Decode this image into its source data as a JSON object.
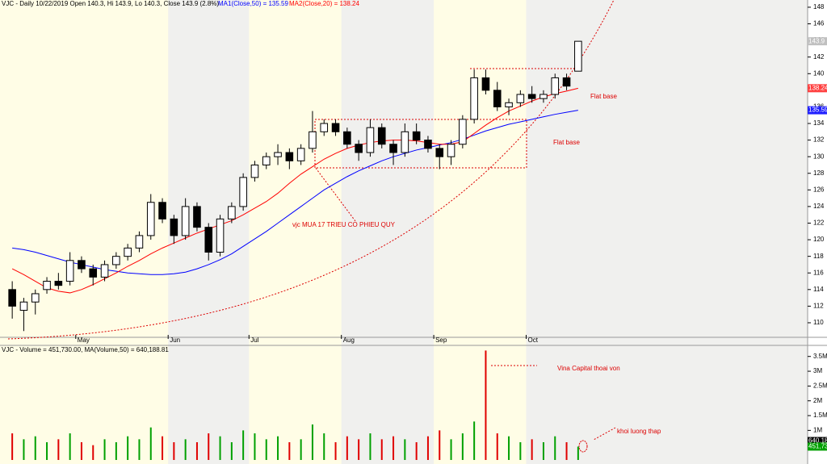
{
  "chart_data": [
    {
      "type": "candlestick",
      "title": "VJC - Daily 10/22/2019 Open 140.3, Hi 143.9, Lo 140.3, Close 143.9 (2.8%)",
      "categories": [
        null,
        null,
        null,
        null,
        null,
        null,
        "May",
        null,
        null,
        null,
        null,
        null,
        null,
        null,
        "Jun",
        null,
        null,
        null,
        null,
        null,
        null,
        "Jul",
        null,
        null,
        null,
        null,
        null,
        null,
        null,
        "Aug",
        null,
        null,
        null,
        null,
        null,
        null,
        null,
        "Sep",
        null,
        null,
        null,
        null,
        null,
        null,
        null,
        "Oct",
        null,
        null,
        null,
        null
      ],
      "ohlc": [
        [
          114,
          115,
          110.5,
          112
        ],
        [
          111.5,
          113,
          109,
          112.5
        ],
        [
          112.5,
          114,
          111,
          113.5
        ],
        [
          114,
          115.5,
          113.5,
          115
        ],
        [
          115,
          116,
          114,
          114.5
        ],
        [
          115,
          118.5,
          114.5,
          117.5
        ],
        [
          117.5,
          118,
          116,
          116.5
        ],
        [
          116.5,
          117,
          114.5,
          115.5
        ],
        [
          115.5,
          117.5,
          115,
          117
        ],
        [
          117,
          118.5,
          116.5,
          118
        ],
        [
          118,
          119.5,
          117.5,
          119
        ],
        [
          119,
          121,
          118.5,
          120.5
        ],
        [
          120.5,
          125.5,
          120,
          124.5
        ],
        [
          124.5,
          125,
          122,
          122.5
        ],
        [
          122.5,
          123,
          119.5,
          120.5
        ],
        [
          120.5,
          125,
          120,
          124
        ],
        [
          124,
          124.5,
          121,
          121.5
        ],
        [
          121.5,
          122,
          117.5,
          118.5
        ],
        [
          118.5,
          123,
          118,
          122.5
        ],
        [
          122.5,
          124.5,
          122,
          124
        ],
        [
          124,
          128,
          123.5,
          127.5
        ],
        [
          127.5,
          129.5,
          127,
          129
        ],
        [
          129,
          130.5,
          128.5,
          130
        ],
        [
          130,
          131.5,
          129,
          130.5
        ],
        [
          130.5,
          131,
          128.5,
          129.5
        ],
        [
          129.5,
          131.5,
          129,
          131
        ],
        [
          131,
          135.5,
          130.5,
          133
        ],
        [
          133,
          134.5,
          132.5,
          134
        ],
        [
          134,
          134.5,
          132.5,
          133
        ],
        [
          133,
          133.5,
          131,
          131.5
        ],
        [
          131.5,
          132,
          129.5,
          130.5
        ],
        [
          130.5,
          134.5,
          130,
          133.5
        ],
        [
          133.5,
          134,
          131,
          131.5
        ],
        [
          131.5,
          132,
          129,
          130.5
        ],
        [
          130.5,
          134,
          130,
          133
        ],
        [
          133,
          134,
          131.5,
          132
        ],
        [
          132,
          132.5,
          130.5,
          131
        ],
        [
          131,
          131.5,
          128.5,
          130
        ],
        [
          130,
          132,
          129,
          131.5
        ],
        [
          131.5,
          135,
          131,
          134.5
        ],
        [
          134.5,
          140.5,
          134,
          139.5
        ],
        [
          139.5,
          140.5,
          137.5,
          138
        ],
        [
          138,
          139,
          135.5,
          136
        ],
        [
          136,
          137,
          135,
          136.5
        ],
        [
          136.5,
          138,
          136,
          137.5
        ],
        [
          137.5,
          138.5,
          136.5,
          137
        ],
        [
          137,
          138,
          136.5,
          137.5
        ],
        [
          137.5,
          140,
          137,
          139.5
        ],
        [
          139.5,
          140,
          138,
          138.5
        ],
        [
          140.3,
          143.9,
          140.3,
          143.9
        ]
      ],
      "series": [
        {
          "name": "MA1(Close,50) = 135.59",
          "color": "#0000ff",
          "values": [
            119,
            118.8,
            118.5,
            118.1,
            117.7,
            117.3,
            117,
            116.7,
            116.4,
            116.2,
            116,
            115.9,
            115.8,
            115.8,
            115.9,
            116.1,
            116.5,
            117,
            117.6,
            118.3,
            119.2,
            120.1,
            121,
            122,
            123,
            124,
            125,
            126,
            126.8,
            127.6,
            128.3,
            128.9,
            129.5,
            130,
            130.4,
            130.8,
            131.1,
            131.4,
            131.7,
            132.1,
            132.6,
            133.1,
            133.5,
            133.9,
            134.2,
            134.5,
            134.8,
            135.1,
            135.35,
            135.59
          ]
        },
        {
          "name": "MA2(Close,20) = 138.24",
          "color": "#ff0000",
          "values": [
            116.5,
            115.8,
            115,
            114.2,
            113.8,
            113.6,
            114,
            114.6,
            115.3,
            116,
            116.8,
            117.5,
            118.3,
            119,
            119.6,
            120.2,
            120.8,
            121.3,
            121.8,
            122.3,
            123,
            123.8,
            124.6,
            125.6,
            126.8,
            127.9,
            128.8,
            129.7,
            130.4,
            131,
            131.4,
            131.7,
            131.9,
            132,
            132,
            131.9,
            131.7,
            131.5,
            131.5,
            131.8,
            132.8,
            133.8,
            134.7,
            135.5,
            136.1,
            136.7,
            137.2,
            137.6,
            137.9,
            138.24
          ]
        }
      ],
      "ylim": [
        108.54,
        148.87
      ],
      "yticks": [
        110,
        112,
        114,
        116,
        118,
        120,
        122,
        124,
        126,
        128,
        130,
        132,
        134,
        136,
        138,
        140,
        142,
        144,
        146,
        148
      ],
      "price_markers": [
        {
          "value": 143.9,
          "color": "#c0c0c0"
        },
        {
          "value": 138.245,
          "color": "#ff4040"
        },
        {
          "value": 135.594,
          "color": "#2020ff"
        }
      ],
      "annotations": [
        "vjc MUA 17 TRIEU CO PHIEU QUY",
        "Flat base",
        "Flat base"
      ]
    },
    {
      "type": "volume",
      "title": "VJC - Volume = 451,730.00, MA(Volume,50) = 640,188.81",
      "values": [
        900000,
        700000,
        800000,
        600000,
        700000,
        900000,
        600000,
        500000,
        700000,
        600000,
        800000,
        700000,
        1100000,
        800000,
        600000,
        700000,
        600000,
        900000,
        800000,
        600000,
        1000000,
        900000,
        700000,
        800000,
        600000,
        700000,
        1200000,
        900000,
        600000,
        800000,
        700000,
        900000,
        700000,
        800000,
        700000,
        600000,
        800000,
        1000000,
        700000,
        900000,
        1300000,
        3700000,
        900000,
        800000,
        600000,
        700000,
        600000,
        800000,
        600000,
        451730
      ],
      "up_color": "#00a000",
      "down_color": "#e00000",
      "ylim": [
        0,
        3820000
      ],
      "yticks": [
        {
          "value": 1000000,
          "label": "1M"
        },
        {
          "value": 1500000,
          "label": "1.5M"
        },
        {
          "value": 2000000,
          "label": "2M"
        },
        {
          "value": 2500000,
          "label": "2.5M"
        },
        {
          "value": 3000000,
          "label": "3M"
        },
        {
          "value": 3500000,
          "label": "3.5M"
        }
      ],
      "price_markers": [
        {
          "value": 640189,
          "label": "640,189",
          "color": "#000000"
        },
        {
          "value": 451730,
          "label": "451,730",
          "color": "#00a000"
        }
      ],
      "annotations": [
        "Vina Capital thoai von",
        "khoi luong thap"
      ]
    }
  ]
}
